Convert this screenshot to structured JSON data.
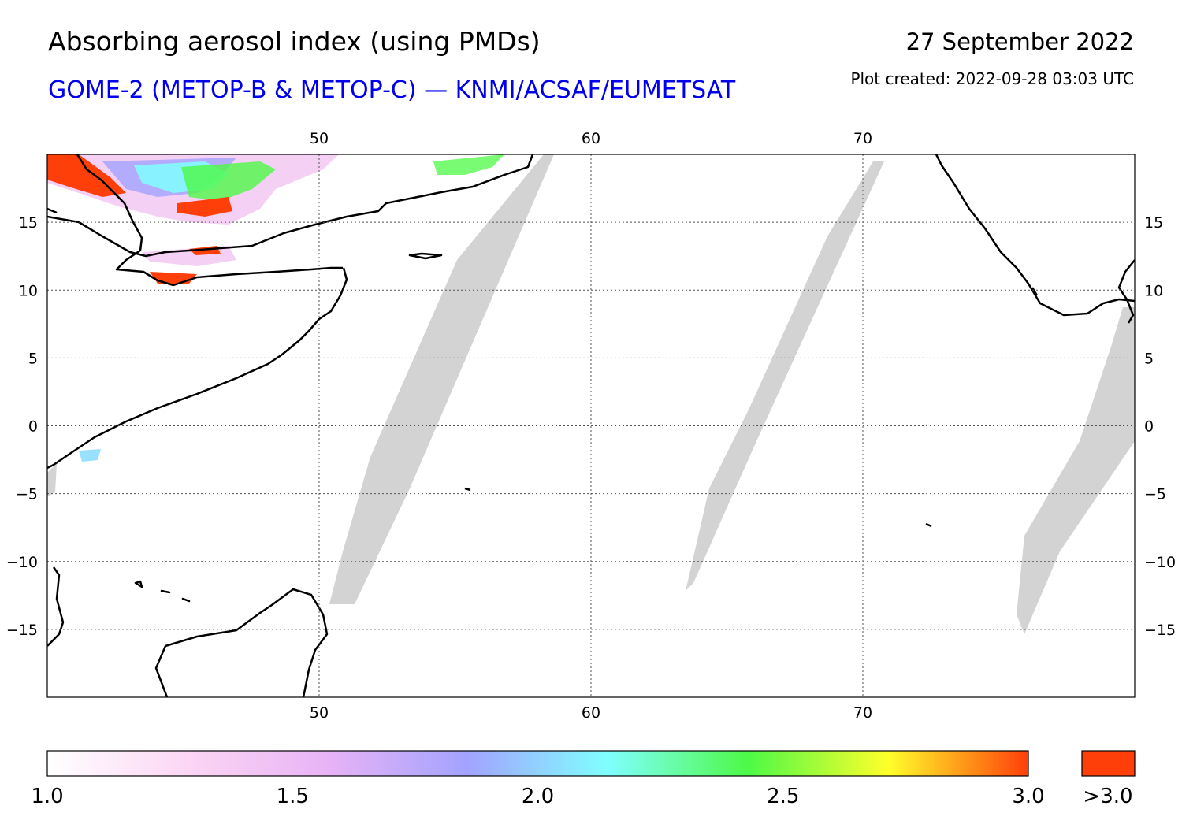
{
  "header": {
    "title": "Absorbing aerosol index (using PMDs)",
    "subtitle": "GOME-2 (METOP-B & METOP-C) — KNMI/ACSAF/EUMETSAT",
    "date": "27 September 2022",
    "created": "Plot created: 2022-09-28 03:03 UTC"
  },
  "map": {
    "lon_range": [
      40,
      80
    ],
    "lat_range": [
      -20,
      20
    ],
    "lon_ticks": [
      {
        "value": 50,
        "label": "50"
      },
      {
        "value": 60,
        "label": "60"
      },
      {
        "value": 70,
        "label": "70"
      }
    ],
    "lat_ticks": [
      {
        "value": 15,
        "label": "15"
      },
      {
        "value": 10,
        "label": "10"
      },
      {
        "value": 5,
        "label": "5"
      },
      {
        "value": 0,
        "label": "0"
      },
      {
        "value": -5,
        "label": "−5"
      },
      {
        "value": -10,
        "label": "−10"
      },
      {
        "value": -15,
        "label": "−15"
      }
    ],
    "no_data_color": "#d3d3d3",
    "coast_color": "#000000"
  },
  "colorbar": {
    "range": [
      1.0,
      3.0
    ],
    "tick_labels": [
      {
        "value": 1.0,
        "label": "1.0"
      },
      {
        "value": 1.5,
        "label": "1.5"
      },
      {
        "value": 2.0,
        "label": "2.0"
      },
      {
        "value": 2.5,
        "label": "2.5"
      },
      {
        "value": 3.0,
        "label": "3.0"
      }
    ],
    "overflow_label": ">3.0",
    "overflow_color": "#ff3f0a",
    "stops": [
      "#ffffff",
      "#fbd6f4",
      "#e8b3f5",
      "#a2a3ff",
      "#80ffff",
      "#4df946",
      "#ffff2b",
      "#ff3f0a"
    ]
  }
}
